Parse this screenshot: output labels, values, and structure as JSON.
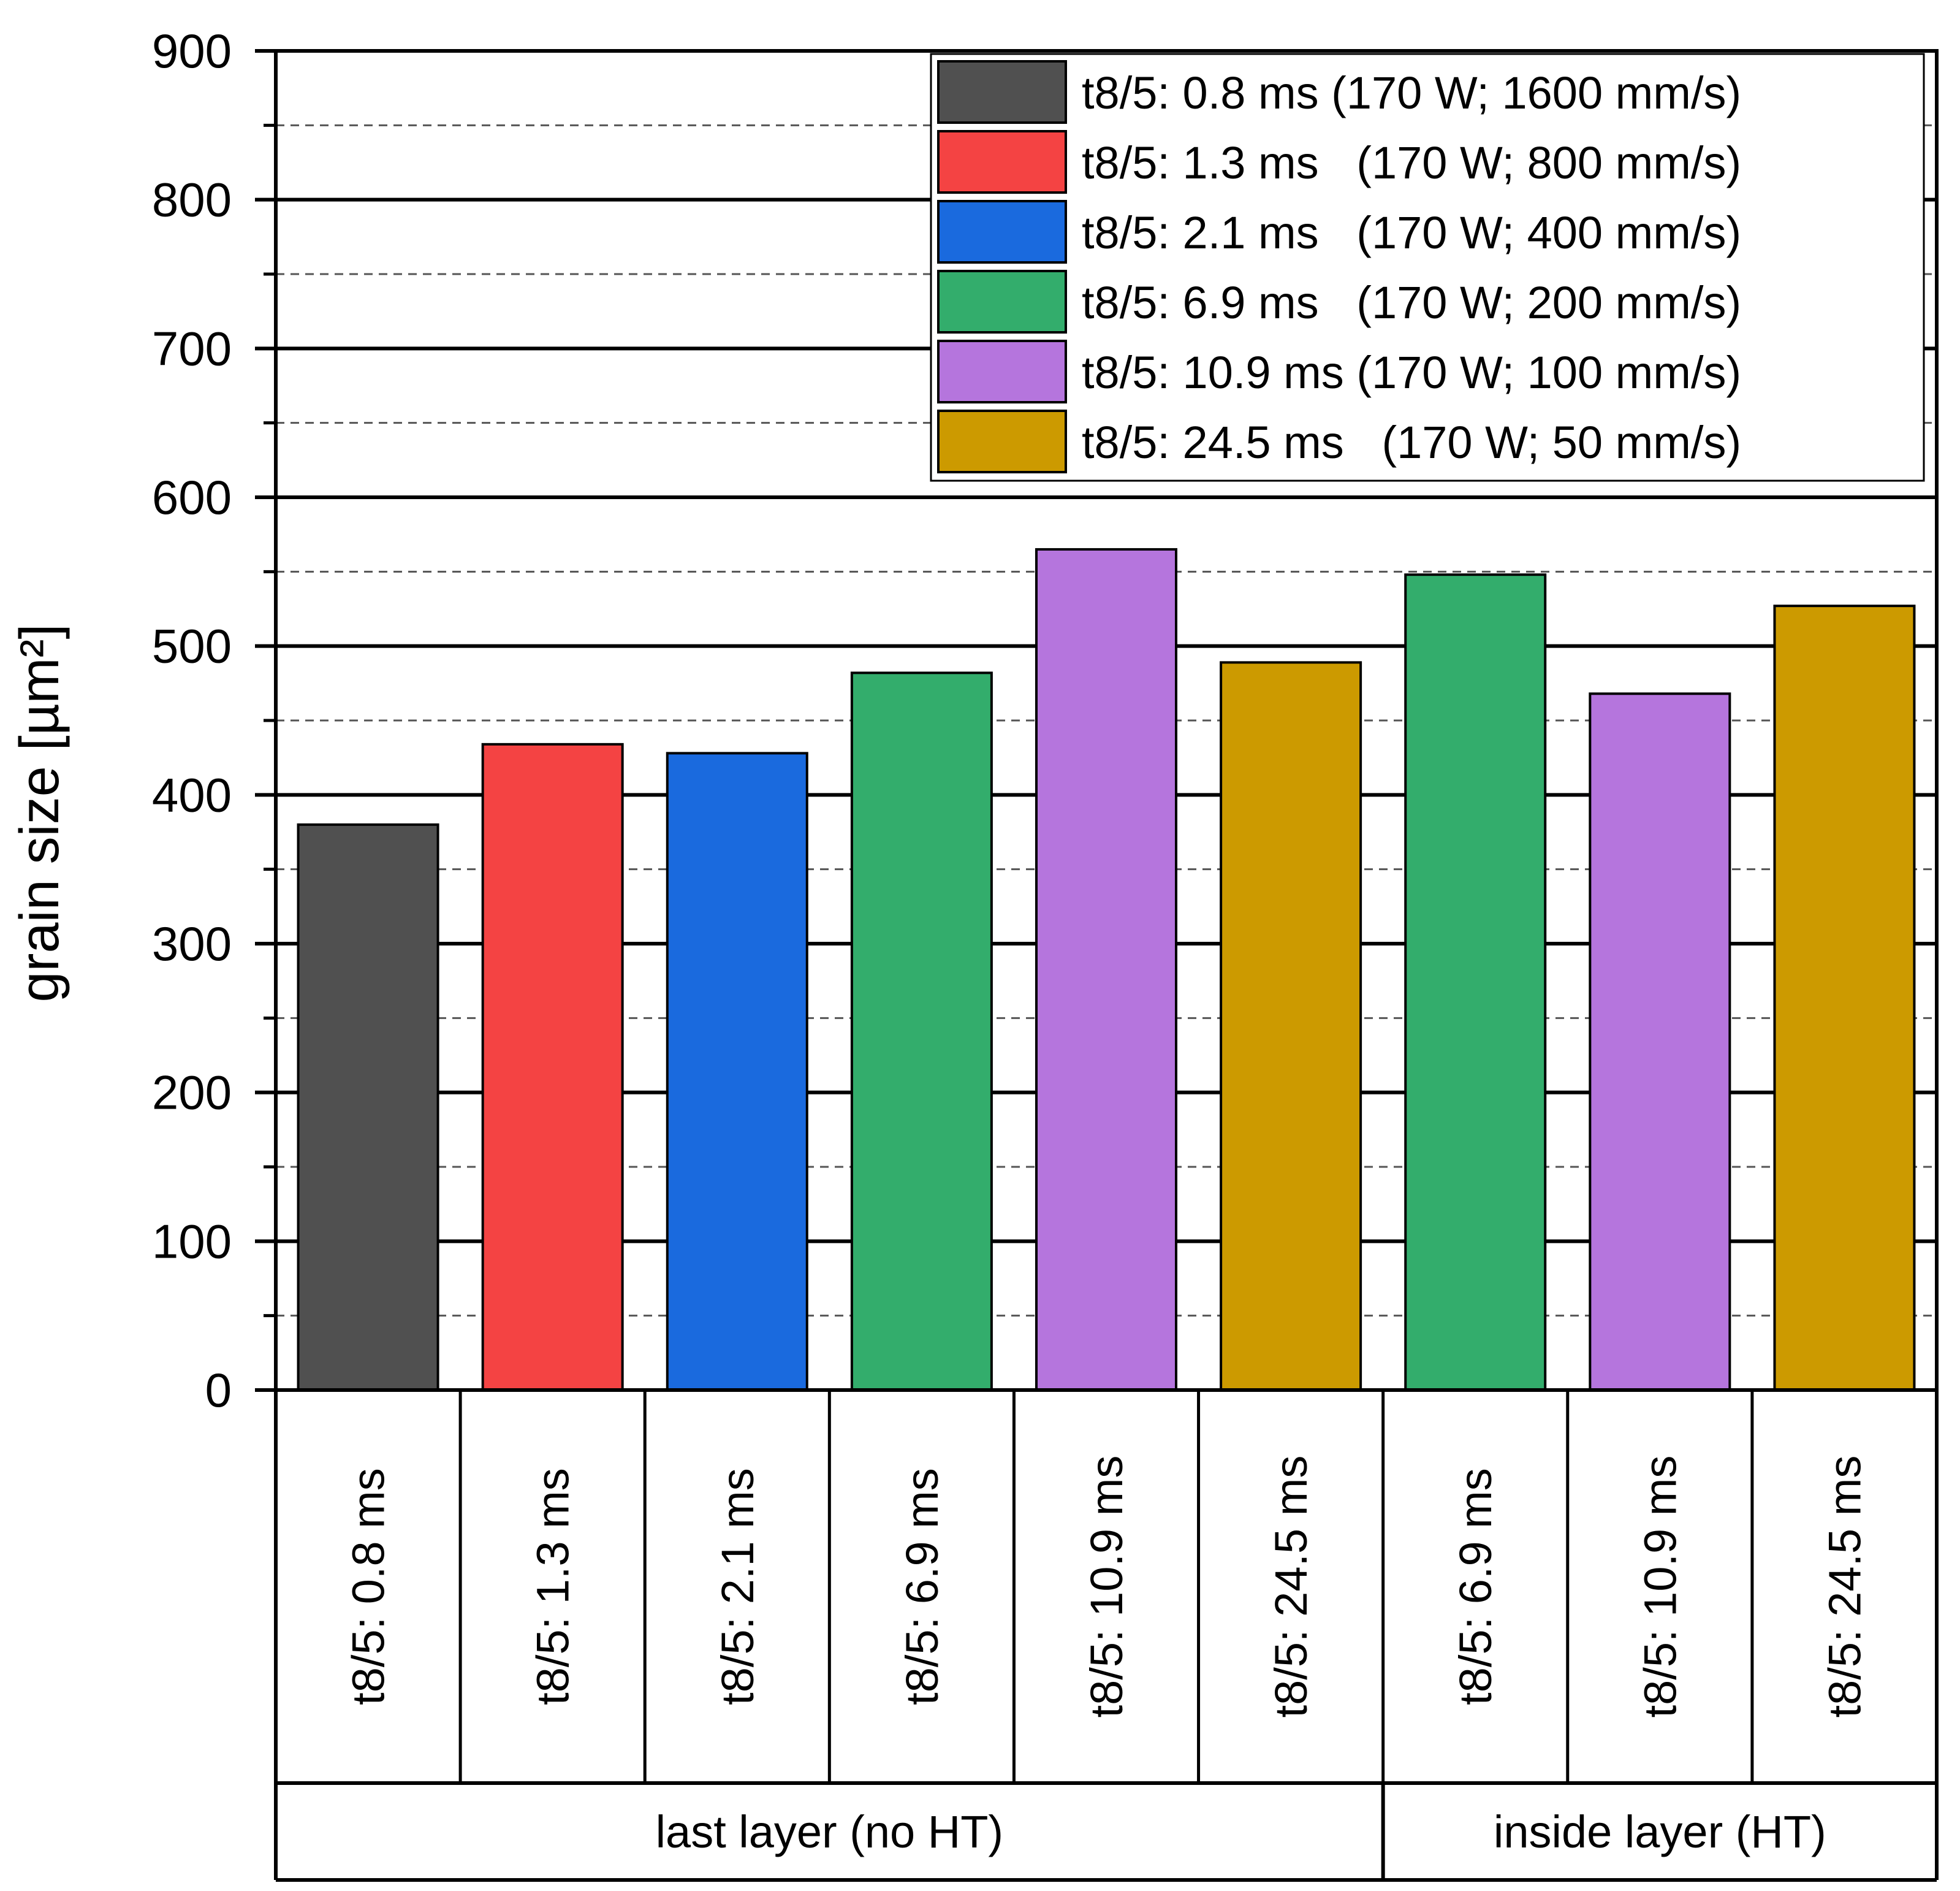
{
  "chart_data": {
    "type": "bar",
    "title": "",
    "ylabel": "grain size [µm²]",
    "xlabel": "",
    "ylim": [
      0,
      900
    ],
    "yticks": [
      0,
      100,
      200,
      300,
      400,
      500,
      600,
      700,
      800,
      900
    ],
    "grid": {
      "major": true,
      "minor_dashed": true
    },
    "legend_position": "top-right",
    "legend": [
      {
        "label": "t8/5: 0.8 ms (170 W; 1600 mm/s)",
        "color": "#505050"
      },
      {
        "label": "t8/5: 1.3 ms   (170 W; 800 mm/s)",
        "color": "#f44343"
      },
      {
        "label": "t8/5: 2.1 ms   (170 W; 400 mm/s)",
        "color": "#1a6ade"
      },
      {
        "label": "t8/5: 6.9 ms   (170 W; 200 mm/s)",
        "color": "#33ad6c"
      },
      {
        "label": "t8/5: 10.9 ms (170 W; 100 mm/s)",
        "color": "#b575dd"
      },
      {
        "label": "t8/5: 24.5 ms   (170 W; 50 mm/s)",
        "color": "#cc9a00"
      }
    ],
    "categories": [
      "t8/5: 0.8 ms",
      "t8/5: 1.3 ms",
      "t8/5: 2.1 ms",
      "t8/5: 6.9 ms",
      "t8/5: 10.9 ms",
      "t8/5: 24.5 ms",
      "t8/5: 6.9 ms",
      "t8/5: 10.9 ms",
      "t8/5: 24.5 ms"
    ],
    "values": [
      380,
      434,
      428,
      482,
      565,
      489,
      548,
      468,
      527
    ],
    "bar_colors": [
      "#505050",
      "#f44343",
      "#1a6ade",
      "#33ad6c",
      "#b575dd",
      "#cc9a00",
      "#33ad6c",
      "#b575dd",
      "#cc9a00"
    ],
    "groups": [
      {
        "label": "last layer (no HT)",
        "count": 6
      },
      {
        "label": "inside layer (HT)",
        "count": 3
      }
    ]
  }
}
